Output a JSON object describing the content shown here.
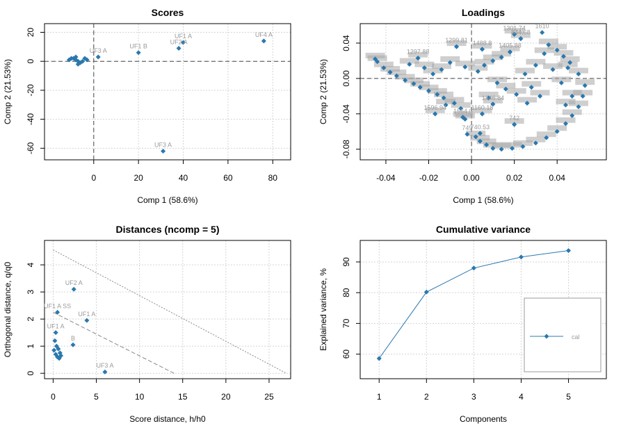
{
  "colors": {
    "point": "#2a78ae",
    "line": "#2a78ae",
    "label": "#9a9a9a",
    "loadings_cloud": "#a8a8a8"
  },
  "chart_data": [
    {
      "type": "scatter",
      "title": "Scores",
      "xlabel": "Comp 1 (58.6%)",
      "ylabel": "Comp 2 (21.53%)",
      "xlim": [
        -22,
        88
      ],
      "ylim": [
        -68,
        26
      ],
      "xticks": [
        "0",
        "20",
        "40",
        "60",
        "80"
      ],
      "yticks": [
        "-60",
        "-40",
        "-20",
        "0",
        "20"
      ],
      "reference_lines": {
        "x": 0,
        "y": 0
      },
      "grid": true,
      "labelled_points": [
        {
          "label": "UF1 A",
          "x": 40,
          "y": 13
        },
        {
          "label": "UF2 A",
          "x": 38,
          "y": 9
        },
        {
          "label": "UF4 A",
          "x": 76,
          "y": 14
        },
        {
          "label": "UF1 B",
          "x": 20,
          "y": 6
        },
        {
          "label": "UF3 A",
          "x": 31,
          "y": -62
        },
        {
          "label": "UF3 A",
          "x": 2,
          "y": 3
        }
      ],
      "points": [
        {
          "x": -8,
          "y": 1
        },
        {
          "x": -9,
          "y": 2
        },
        {
          "x": -7,
          "y": 0
        },
        {
          "x": -6,
          "y": -1
        },
        {
          "x": -10,
          "y": 2
        },
        {
          "x": -5,
          "y": 0
        },
        {
          "x": -4,
          "y": 2
        },
        {
          "x": -7,
          "y": -2
        },
        {
          "x": -8,
          "y": 3
        },
        {
          "x": -11,
          "y": 1
        },
        {
          "x": -3,
          "y": 1
        }
      ]
    },
    {
      "type": "scatter",
      "title": "Loadings",
      "xlabel": "Comp 1 (58.6%)",
      "ylabel": "Comp 2 (21.53%)",
      "xlim": [
        -0.052,
        0.063
      ],
      "ylim": [
        -0.092,
        0.062
      ],
      "xticks": [
        "-0.04",
        "-0.02",
        "0.00",
        "0.02",
        "0.04"
      ],
      "yticks": [
        "-0.08",
        "-0.04",
        "0.00",
        "0.04"
      ],
      "reference_lines": {
        "x": 0,
        "y": 0
      },
      "grid": true,
      "labelled_points": [
        {
          "label": "1301.74",
          "x": 0.02,
          "y": 0.05
        },
        {
          "label": "1299.81",
          "x": -0.007,
          "y": 0.036
        },
        {
          "label": "1488.8",
          "x": 0.005,
          "y": 0.033
        },
        {
          "label": "1297.88",
          "x": -0.025,
          "y": 0.023
        },
        {
          "label": "1405.88",
          "x": 0.018,
          "y": 0.03
        },
        {
          "label": "844.68",
          "x": 0.023,
          "y": 0.045
        },
        {
          "label": "1610",
          "x": 0.033,
          "y": 0.052
        },
        {
          "label": "1564.0",
          "x": -0.004,
          "y": -0.044
        },
        {
          "label": "1596.94",
          "x": -0.017,
          "y": -0.04
        },
        {
          "label": "1160.18",
          "x": 0.005,
          "y": -0.04
        },
        {
          "label": "742",
          "x": 0.02,
          "y": -0.052
        },
        {
          "label": "749",
          "x": -0.002,
          "y": -0.063
        },
        {
          "label": "740.53",
          "x": 0.004,
          "y": -0.062
        },
        {
          "label": "1346.84",
          "x": 0.01,
          "y": -0.029
        }
      ],
      "points": [
        {
          "x": -0.045,
          "y": 0.022
        },
        {
          "x": -0.044,
          "y": 0.019
        },
        {
          "x": -0.041,
          "y": 0.012
        },
        {
          "x": -0.038,
          "y": 0.007
        },
        {
          "x": -0.035,
          "y": 0.003
        },
        {
          "x": -0.031,
          "y": -0.002
        },
        {
          "x": -0.027,
          "y": -0.006
        },
        {
          "x": -0.024,
          "y": -0.01
        },
        {
          "x": -0.02,
          "y": -0.014
        },
        {
          "x": -0.016,
          "y": -0.018
        },
        {
          "x": -0.013,
          "y": -0.022
        },
        {
          "x": -0.008,
          "y": -0.028
        },
        {
          "x": -0.005,
          "y": -0.034
        },
        {
          "x": -0.003,
          "y": -0.046
        },
        {
          "x": 0.002,
          "y": -0.066
        },
        {
          "x": 0.004,
          "y": -0.071
        },
        {
          "x": 0.007,
          "y": -0.075
        },
        {
          "x": 0.01,
          "y": -0.079
        },
        {
          "x": 0.014,
          "y": -0.08
        },
        {
          "x": 0.019,
          "y": -0.079
        },
        {
          "x": 0.024,
          "y": -0.077
        },
        {
          "x": 0.03,
          "y": -0.073
        },
        {
          "x": 0.035,
          "y": -0.067
        },
        {
          "x": 0.04,
          "y": -0.06
        },
        {
          "x": 0.044,
          "y": -0.051
        },
        {
          "x": 0.047,
          "y": -0.042
        },
        {
          "x": 0.05,
          "y": -0.032
        },
        {
          "x": 0.052,
          "y": -0.02
        },
        {
          "x": 0.053,
          "y": -0.008
        },
        {
          "x": 0.05,
          "y": 0.005
        },
        {
          "x": 0.046,
          "y": 0.018
        },
        {
          "x": 0.043,
          "y": 0.025
        },
        {
          "x": 0.04,
          "y": 0.032
        },
        {
          "x": 0.036,
          "y": 0.038
        },
        {
          "x": 0.02,
          "y": 0.05
        },
        {
          "x": 0.023,
          "y": 0.045
        },
        {
          "x": 0.018,
          "y": 0.03
        },
        {
          "x": 0.014,
          "y": 0.024
        },
        {
          "x": 0.01,
          "y": 0.02
        },
        {
          "x": 0.006,
          "y": 0.015
        },
        {
          "x": 0.003,
          "y": 0.008
        },
        {
          "x": -0.003,
          "y": 0.013
        },
        {
          "x": -0.007,
          "y": 0.036
        },
        {
          "x": -0.01,
          "y": 0.018
        },
        {
          "x": -0.014,
          "y": 0.01
        },
        {
          "x": -0.018,
          "y": 0.005
        },
        {
          "x": -0.022,
          "y": 0.012
        },
        {
          "x": -0.025,
          "y": 0.023
        },
        {
          "x": -0.029,
          "y": 0.016
        },
        {
          "x": 0.005,
          "y": 0.033
        },
        {
          "x": 0.012,
          "y": -0.005
        },
        {
          "x": 0.016,
          "y": -0.012
        },
        {
          "x": 0.021,
          "y": -0.018
        },
        {
          "x": 0.026,
          "y": -0.028
        },
        {
          "x": 0.028,
          "y": -0.01
        },
        {
          "x": 0.032,
          "y": -0.02
        },
        {
          "x": 0.008,
          "y": -0.022
        },
        {
          "x": 0.005,
          "y": -0.04
        },
        {
          "x": -0.004,
          "y": -0.044
        },
        {
          "x": -0.017,
          "y": -0.04
        },
        {
          "x": -0.012,
          "y": -0.03
        },
        {
          "x": 0.02,
          "y": -0.052
        },
        {
          "x": 0.01,
          "y": -0.029
        },
        {
          "x": 0.038,
          "y": 0.01
        },
        {
          "x": 0.042,
          "y": -0.005
        },
        {
          "x": 0.045,
          "y": 0.012
        },
        {
          "x": 0.047,
          "y": -0.02
        },
        {
          "x": 0.044,
          "y": -0.03
        },
        {
          "x": 0.03,
          "y": 0.015
        },
        {
          "x": 0.025,
          "y": 0.005
        },
        {
          "x": 0.034,
          "y": 0.028
        }
      ]
    },
    {
      "type": "scatter",
      "title": "Distances (ncomp = 5)",
      "xlabel": "Score distance, h/h0",
      "ylabel": "Orthogonal distance, q/q0",
      "xlim": [
        -1,
        27.5
      ],
      "ylim": [
        -0.2,
        4.9
      ],
      "xticks": [
        "0",
        "5",
        "10",
        "15",
        "20",
        "25"
      ],
      "yticks": [
        "0",
        "1",
        "2",
        "3",
        "4"
      ],
      "grid": true,
      "limit_lines": [
        {
          "from": [
            0,
            2.25
          ],
          "to": [
            14,
            0
          ]
        },
        {
          "from": [
            0,
            4.55
          ],
          "to": [
            27,
            0
          ]
        }
      ],
      "labelled_points": [
        {
          "label": "UF2 A",
          "x": 2.4,
          "y": 3.1
        },
        {
          "label": "UF1 A SS",
          "x": 0.5,
          "y": 2.25
        },
        {
          "label": "UF1 A",
          "x": 3.9,
          "y": 1.95
        },
        {
          "label": "UF1 A",
          "x": 0.3,
          "y": 1.5
        },
        {
          "label": "UF3 A",
          "x": 6.0,
          "y": 0.05
        },
        {
          "label": "B",
          "x": 2.3,
          "y": 1.05
        }
      ],
      "points": [
        {
          "x": 0.3,
          "y": 0.7
        },
        {
          "x": 0.5,
          "y": 0.6
        },
        {
          "x": 0.8,
          "y": 0.75
        },
        {
          "x": 0.6,
          "y": 0.9
        },
        {
          "x": 0.4,
          "y": 1.0
        },
        {
          "x": 0.9,
          "y": 0.65
        },
        {
          "x": 0.2,
          "y": 1.2
        },
        {
          "x": 0.7,
          "y": 0.55
        },
        {
          "x": 0.1,
          "y": 0.85
        }
      ]
    },
    {
      "type": "line",
      "title": "Cumulative variance",
      "xlabel": "Components",
      "ylabel": "Explained variance, %",
      "xlim": [
        0.6,
        5.8
      ],
      "ylim": [
        52,
        97
      ],
      "xticks": [
        "1",
        "2",
        "3",
        "4",
        "5"
      ],
      "yticks": [
        "60",
        "70",
        "80",
        "90"
      ],
      "grid": true,
      "x": [
        1,
        2,
        3,
        4,
        5
      ],
      "series": [
        {
          "name": "cal",
          "values": [
            58.6,
            80.2,
            88.0,
            91.6,
            93.7
          ]
        }
      ],
      "legend": "bottom-right"
    }
  ]
}
